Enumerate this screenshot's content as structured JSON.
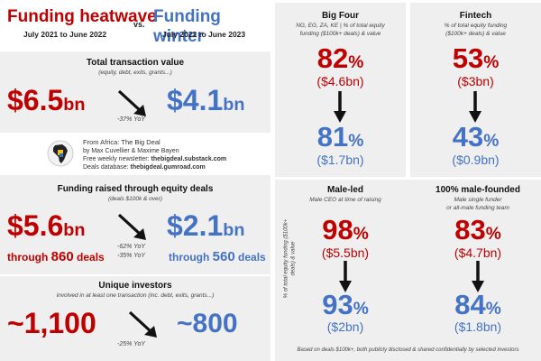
{
  "header": {
    "left_title": "Funding heatwave",
    "left_period": "July 2021 to June 2022",
    "vs": "vs.",
    "right_title": "Funding winter",
    "right_period": "July 2022 to June 2023"
  },
  "total_value": {
    "title": "Total transaction value",
    "subtitle": "(equity, debt, exits, grants...)",
    "before": "$6.5",
    "before_unit": "bn",
    "after": "$4.1",
    "after_unit": "bn",
    "change": "-37% YoY"
  },
  "source": {
    "line1": "From Africa: The Big Deal",
    "line2": "by Max Cuvellier & Maxime Bayen",
    "line3_prefix": "Free weekly newsletter: ",
    "line3_link": "thebigdeal.substack.com",
    "line4_prefix": "Deals database: ",
    "line4_link": "thebigdeal.gumroad.com"
  },
  "equity": {
    "title": "Funding raised through equity deals",
    "subtitle": "(deals $100k & over)",
    "before": "$5.6",
    "before_unit": "bn",
    "after": "$2.1",
    "after_unit": "bn",
    "change1": "-62% YoY",
    "change2": "-35% YoY",
    "before_deals_prefix": "through ",
    "before_deals": "860",
    "before_deals_suffix": " deals",
    "after_deals_prefix": "through ",
    "after_deals": "560",
    "after_deals_suffix": " deals"
  },
  "investors": {
    "title": "Unique investors",
    "subtitle": "involved in at least one transaction (inc. debt, exits, grants...)",
    "before": "~1,100",
    "after": "~800",
    "change": "-25% YoY"
  },
  "big_four": {
    "title": "Big Four",
    "caption1": "NG, EG, ZA, KE | % of total equity",
    "caption2": "funding ($100k+ deals) & value",
    "before_pct": "82",
    "before_val": "($4.6bn)",
    "after_pct": "81",
    "after_val": "($1.7bn)"
  },
  "fintech": {
    "title": "Fintech",
    "caption1": "% of total equity funding",
    "caption2": "($100k+ deals) & value",
    "before_pct": "53",
    "before_val": "($3bn)",
    "after_pct": "43",
    "after_val": "($0.9bn)"
  },
  "male_led": {
    "title": "Male-led",
    "caption1": "Male CEO at time of raising",
    "before_pct": "98",
    "before_val": "($5.5bn)",
    "after_pct": "93",
    "after_val": "($2bn)"
  },
  "male_founded": {
    "title": "100% male-founded",
    "caption1": "Male single funder",
    "caption2": "or all-male funding team",
    "before_pct": "83",
    "before_val": "($4.7bn)",
    "after_pct": "84",
    "after_val": "($1.8bn)"
  },
  "side_label": "% of total equity funding ($100k+ deals) & value",
  "percent_sign": "%",
  "footer": "Based on deals $100k+, both publicly disclosed & shared confidentially by selected investors",
  "colors": {
    "red": "#c00000",
    "blue": "#4472c4",
    "panel": "#efefef"
  }
}
